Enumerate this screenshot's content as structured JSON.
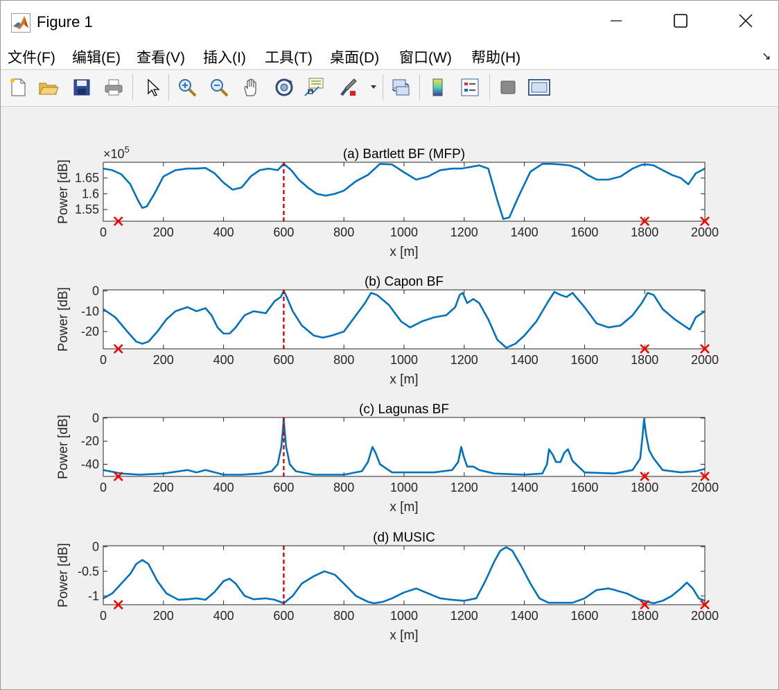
{
  "window": {
    "title": "Figure 1"
  },
  "menu": [
    "文件(F)",
    "编辑(E)",
    "查看(V)",
    "插入(I)",
    "工具(T)",
    "桌面(D)",
    "窗口(W)",
    "帮助(H)"
  ],
  "toolbar": [
    "new-figure-icon",
    "open-icon",
    "save-icon",
    "print-icon",
    "pointer-icon",
    "zoom-in-icon",
    "zoom-out-icon",
    "pan-icon",
    "rotate-3d-icon",
    "data-cursor-icon",
    "brush-icon",
    "link-plot-icon",
    "colorbar-icon",
    "legend-icon",
    "hide-plot-tools-icon",
    "show-plot-tools-icon"
  ],
  "colors": {
    "line": "#0072BD",
    "marker": "#FF0000",
    "dash": "#E00000"
  },
  "chart_data": [
    {
      "type": "line",
      "title": "(a) Bartlett BF (MFP)",
      "xlabel": "x [m]",
      "ylabel": "Power [dB]",
      "exponent_label": "×10",
      "exponent_power": "5",
      "xlim": [
        0,
        2000
      ],
      "ylim": [
        1.513,
        1.7
      ],
      "xticks": [
        0,
        200,
        400,
        600,
        800,
        1000,
        1200,
        1400,
        1600,
        1800,
        2000
      ],
      "yticks": [
        1.55,
        1.6,
        1.65
      ],
      "yticklabels": [
        "1.55",
        "1.6",
        "1.65"
      ],
      "true_source_x": 600,
      "marker_x": [
        50,
        1800,
        2000
      ],
      "x": [
        0,
        30,
        60,
        90,
        115,
        130,
        145,
        170,
        200,
        240,
        280,
        310,
        340,
        370,
        400,
        430,
        460,
        490,
        520,
        550,
        580,
        600,
        625,
        650,
        680,
        710,
        740,
        770,
        800,
        840,
        880,
        920,
        960,
        1000,
        1040,
        1080,
        1120,
        1160,
        1190,
        1220,
        1250,
        1280,
        1310,
        1330,
        1350,
        1380,
        1420,
        1460,
        1490,
        1520,
        1550,
        1580,
        1610,
        1640,
        1680,
        1720,
        1760,
        1790,
        1810,
        1830,
        1860,
        1890,
        1920,
        1945,
        1970,
        2000
      ],
      "y": [
        1.68,
        1.675,
        1.662,
        1.63,
        1.58,
        1.555,
        1.56,
        1.6,
        1.655,
        1.675,
        1.68,
        1.68,
        1.682,
        1.665,
        1.635,
        1.613,
        1.62,
        1.655,
        1.675,
        1.68,
        1.675,
        1.695,
        1.675,
        1.645,
        1.62,
        1.6,
        1.594,
        1.6,
        1.61,
        1.64,
        1.66,
        1.695,
        1.693,
        1.668,
        1.645,
        1.655,
        1.675,
        1.68,
        1.68,
        1.685,
        1.69,
        1.68,
        1.58,
        1.52,
        1.525,
        1.59,
        1.67,
        1.695,
        1.695,
        1.693,
        1.69,
        1.68,
        1.66,
        1.645,
        1.645,
        1.655,
        1.68,
        1.692,
        1.693,
        1.69,
        1.675,
        1.66,
        1.65,
        1.63,
        1.665,
        1.68
      ]
    },
    {
      "type": "line",
      "title": "(b) Capon BF",
      "xlabel": "x [m]",
      "ylabel": "Power [dB]",
      "xlim": [
        0,
        2000
      ],
      "ylim": [
        -28.5,
        0.5
      ],
      "xticks": [
        0,
        200,
        400,
        600,
        800,
        1000,
        1200,
        1400,
        1600,
        1800,
        2000
      ],
      "yticks": [
        -20,
        -10,
        0
      ],
      "yticklabels": [
        "-20",
        "-10",
        "0"
      ],
      "true_source_x": 600,
      "marker_x": [
        50,
        1800,
        2000
      ],
      "x": [
        0,
        40,
        80,
        110,
        130,
        150,
        180,
        210,
        240,
        280,
        310,
        340,
        360,
        380,
        400,
        420,
        440,
        470,
        500,
        540,
        570,
        590,
        600,
        610,
        630,
        660,
        700,
        730,
        760,
        800,
        840,
        870,
        890,
        910,
        950,
        990,
        1020,
        1060,
        1100,
        1140,
        1170,
        1185,
        1195,
        1210,
        1230,
        1250,
        1280,
        1310,
        1340,
        1370,
        1400,
        1440,
        1480,
        1500,
        1520,
        1540,
        1560,
        1600,
        1640,
        1680,
        1720,
        1760,
        1790,
        1810,
        1830,
        1860,
        1900,
        1930,
        1950,
        1970,
        2000
      ],
      "y": [
        -9,
        -13,
        -20,
        -25,
        -26,
        -25,
        -20,
        -14,
        -10,
        -8,
        -10,
        -8.5,
        -12,
        -18,
        -21,
        -21,
        -18,
        -12,
        -10,
        -11,
        -5,
        -3,
        0,
        -3,
        -10,
        -17,
        -22,
        -23,
        -22,
        -20,
        -12,
        -6,
        -1,
        -2,
        -7,
        -15,
        -18,
        -15,
        -13,
        -12,
        -8,
        -2,
        -1,
        -6,
        -4,
        -6,
        -14,
        -24,
        -28,
        -26,
        -22,
        -15,
        -5,
        -0.5,
        -2,
        -3,
        -1,
        -8,
        -16,
        -18,
        -17,
        -12,
        -6,
        -1,
        -2,
        -9,
        -14,
        -17,
        -19,
        -13,
        -10
      ]
    },
    {
      "type": "line",
      "title": "(c) Lagunas BF",
      "xlabel": "x [m]",
      "ylabel": "Power [dB]",
      "xlim": [
        0,
        2000
      ],
      "ylim": [
        -50.5,
        0.5
      ],
      "xticks": [
        0,
        200,
        400,
        600,
        800,
        1000,
        1200,
        1400,
        1600,
        1800,
        2000
      ],
      "yticks": [
        -40,
        -20,
        0
      ],
      "yticklabels": [
        "-40",
        "-20",
        "0"
      ],
      "true_source_x": 600,
      "marker_x": [
        50,
        1800,
        2000
      ],
      "x": [
        0,
        60,
        120,
        200,
        280,
        310,
        340,
        400,
        460,
        520,
        560,
        580,
        592,
        598,
        600,
        602,
        608,
        620,
        640,
        700,
        800,
        860,
        880,
        895,
        905,
        920,
        960,
        1000,
        1100,
        1160,
        1180,
        1190,
        1198,
        1210,
        1230,
        1250,
        1300,
        1400,
        1460,
        1475,
        1482,
        1495,
        1505,
        1520,
        1533,
        1545,
        1560,
        1600,
        1700,
        1760,
        1785,
        1793,
        1798,
        1805,
        1815,
        1830,
        1860,
        1920,
        1970,
        2000
      ],
      "y": [
        -45,
        -48,
        -49,
        -48,
        -45,
        -47,
        -45,
        -49,
        -49,
        -48,
        -46,
        -40,
        -25,
        -8,
        0,
        -8,
        -25,
        -40,
        -46,
        -49,
        -49,
        -46,
        -38,
        -25,
        -30,
        -40,
        -47,
        -47,
        -47,
        -45,
        -38,
        -25,
        -33,
        -42,
        -42,
        -45,
        -48,
        -49,
        -48,
        -40,
        -27,
        -32,
        -38,
        -38,
        -30,
        -27,
        -37,
        -47,
        -48,
        -45,
        -35,
        -15,
        -1,
        -15,
        -28,
        -35,
        -45,
        -47,
        -46,
        -44
      ]
    },
    {
      "type": "line",
      "title": "(d) MUSIC",
      "xlabel": "x [m]",
      "ylabel": "Power [dB]",
      "xlim": [
        0,
        2000
      ],
      "ylim": [
        -1.18,
        0.02
      ],
      "xticks": [
        0,
        200,
        400,
        600,
        800,
        1000,
        1200,
        1400,
        1600,
        1800,
        2000
      ],
      "yticks": [
        -1,
        -0.5,
        0
      ],
      "yticklabels": [
        "-1",
        "-0.5",
        "0"
      ],
      "true_source_x": 600,
      "marker_x": [
        50,
        1800,
        2000
      ],
      "x": [
        0,
        30,
        60,
        90,
        110,
        130,
        150,
        180,
        210,
        250,
        280,
        310,
        340,
        370,
        400,
        420,
        440,
        470,
        500,
        540,
        570,
        600,
        630,
        660,
        700,
        735,
        770,
        800,
        840,
        880,
        900,
        930,
        960,
        1000,
        1040,
        1080,
        1120,
        1160,
        1200,
        1240,
        1270,
        1300,
        1320,
        1340,
        1360,
        1390,
        1420,
        1450,
        1480,
        1520,
        1560,
        1600,
        1640,
        1680,
        1700,
        1740,
        1780,
        1810,
        1830,
        1860,
        1890,
        1920,
        1940,
        1960,
        1980,
        2000
      ],
      "y": [
        -1.05,
        -0.95,
        -0.75,
        -0.55,
        -0.35,
        -0.27,
        -0.35,
        -0.7,
        -0.95,
        -1.08,
        -1.07,
        -1.05,
        -1.08,
        -0.92,
        -0.7,
        -0.65,
        -0.75,
        -1,
        -1.07,
        -1.05,
        -1.08,
        -1.15,
        -1,
        -0.75,
        -0.6,
        -0.5,
        -0.57,
        -0.75,
        -1,
        -1.12,
        -1.15,
        -1.12,
        -1.05,
        -0.93,
        -0.85,
        -0.95,
        -1.05,
        -1.08,
        -1.1,
        -1.05,
        -0.7,
        -0.3,
        -0.08,
        -0.01,
        -0.08,
        -0.4,
        -0.75,
        -1.05,
        -1.14,
        -1.14,
        -1.14,
        -1.05,
        -0.88,
        -0.85,
        -0.88,
        -0.95,
        -1.07,
        -1.12,
        -1.15,
        -1.1,
        -1.0,
        -0.85,
        -0.73,
        -0.85,
        -1.05,
        -1.1
      ]
    }
  ]
}
